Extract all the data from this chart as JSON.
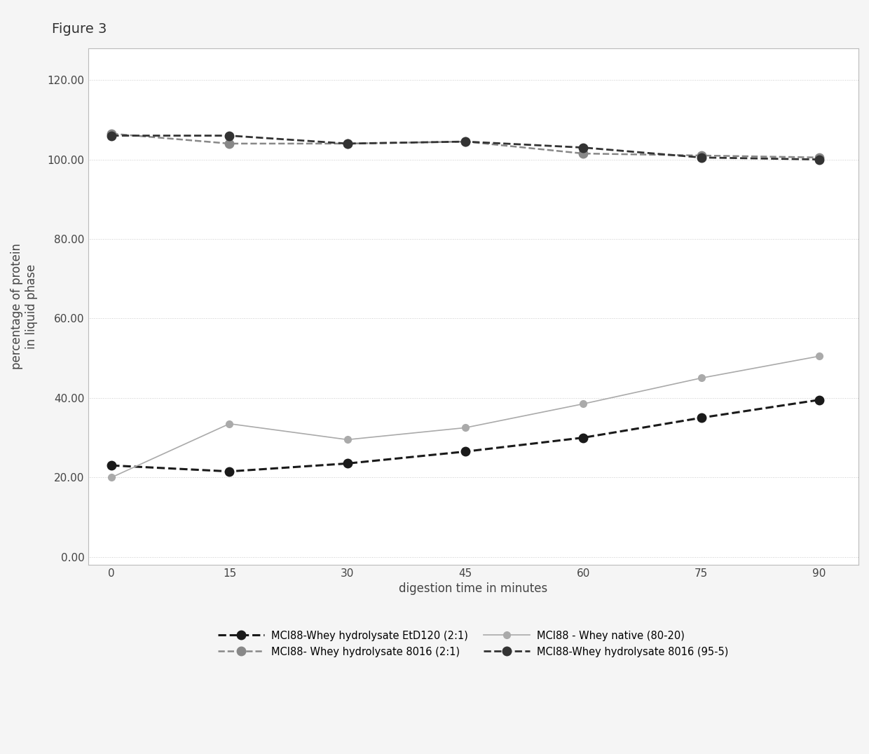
{
  "title": "Figure 3",
  "xlabel": "digestion time in minutes",
  "ylabel": "percentage of protein\nin liquid phase",
  "x": [
    0,
    15,
    30,
    45,
    60,
    75,
    90
  ],
  "series": [
    {
      "label": "MCI88-Whey hydrolysate EtD120 (2:1)",
      "y": [
        23.0,
        21.5,
        23.5,
        26.5,
        30.0,
        35.0,
        39.5
      ],
      "color": "#1a1a1a",
      "linestyle": "--",
      "marker": "o",
      "markersize": 9,
      "linewidth": 2.2,
      "markerfacecolor": "#1a1a1a",
      "markeredgecolor": "#1a1a1a"
    },
    {
      "label": "MCI88- Whey hydrolysate 8016 (2:1)",
      "y": [
        106.5,
        104.0,
        104.0,
        104.5,
        101.5,
        101.0,
        100.5
      ],
      "color": "#888888",
      "linestyle": "--",
      "marker": "o",
      "markersize": 9,
      "linewidth": 1.8,
      "markerfacecolor": "#888888",
      "markeredgecolor": "#888888"
    },
    {
      "label": "MCI88 - Whey native (80-20)",
      "y": [
        20.0,
        33.5,
        29.5,
        32.5,
        38.5,
        45.0,
        50.5
      ],
      "color": "#aaaaaa",
      "linestyle": "-",
      "marker": "o",
      "markersize": 7,
      "linewidth": 1.2,
      "markerfacecolor": "#aaaaaa",
      "markeredgecolor": "#aaaaaa"
    },
    {
      "label": "MCI88-Whey hydrolysate 8016 (95-5)",
      "y": [
        106.0,
        106.0,
        104.0,
        104.5,
        103.0,
        100.5,
        100.0
      ],
      "color": "#333333",
      "linestyle": "--",
      "marker": "o",
      "markersize": 9,
      "linewidth": 2.0,
      "markerfacecolor": "#333333",
      "markeredgecolor": "#333333"
    }
  ],
  "yticks": [
    0.0,
    20.0,
    40.0,
    60.0,
    80.0,
    100.0,
    120.0
  ],
  "xticks": [
    0,
    15,
    30,
    45,
    60,
    75,
    90
  ],
  "ylim": [
    -2,
    128
  ],
  "xlim": [
    -3,
    95
  ],
  "background_color": "#f5f5f5",
  "plot_bg_color": "#ffffff",
  "grid_color": "#cccccc"
}
